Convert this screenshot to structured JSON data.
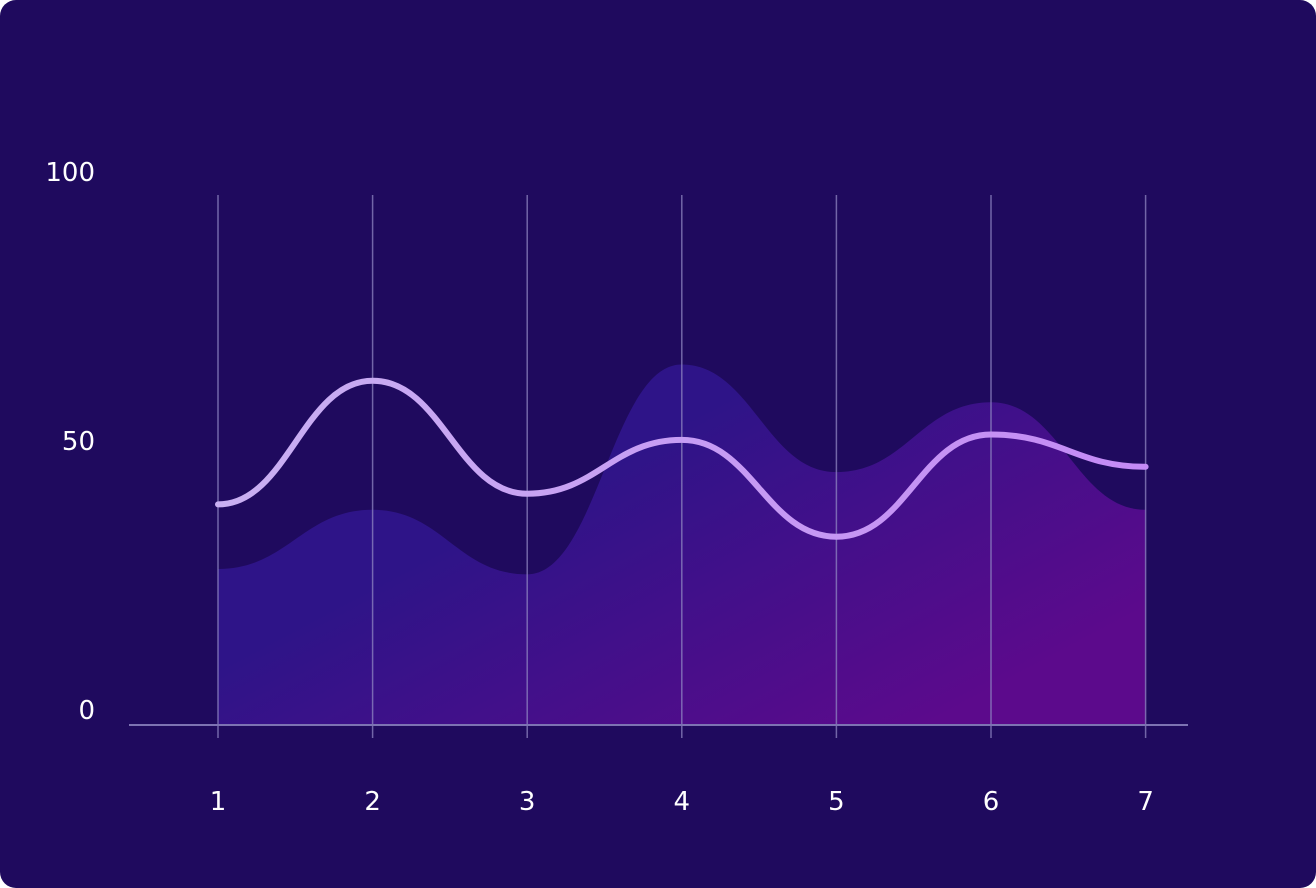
{
  "colors": {
    "background": "#1f0a5e",
    "gridline": "#8f86c2",
    "axis": "#7d73b3",
    "area_top": "#2e1488",
    "area_bottom": "#5c0a8c",
    "line_start": "#c9b0f2",
    "line_end": "#c48af5",
    "tick_text": "#ffffff"
  },
  "chart_data": {
    "type": "area",
    "title": "",
    "xlabel": "",
    "ylabel": "",
    "x": [
      1,
      2,
      3,
      4,
      5,
      6,
      7
    ],
    "ylim": [
      0,
      100
    ],
    "y_ticks": [
      0,
      50,
      100
    ],
    "grid": {
      "vertical": true,
      "horizontal": false
    },
    "legend": "none",
    "series": [
      {
        "kind": "area",
        "values": [
          29,
          40,
          28,
          67,
          47,
          60,
          40
        ]
      },
      {
        "kind": "line",
        "values": [
          41,
          64,
          43,
          53,
          35,
          54,
          48
        ]
      }
    ]
  }
}
